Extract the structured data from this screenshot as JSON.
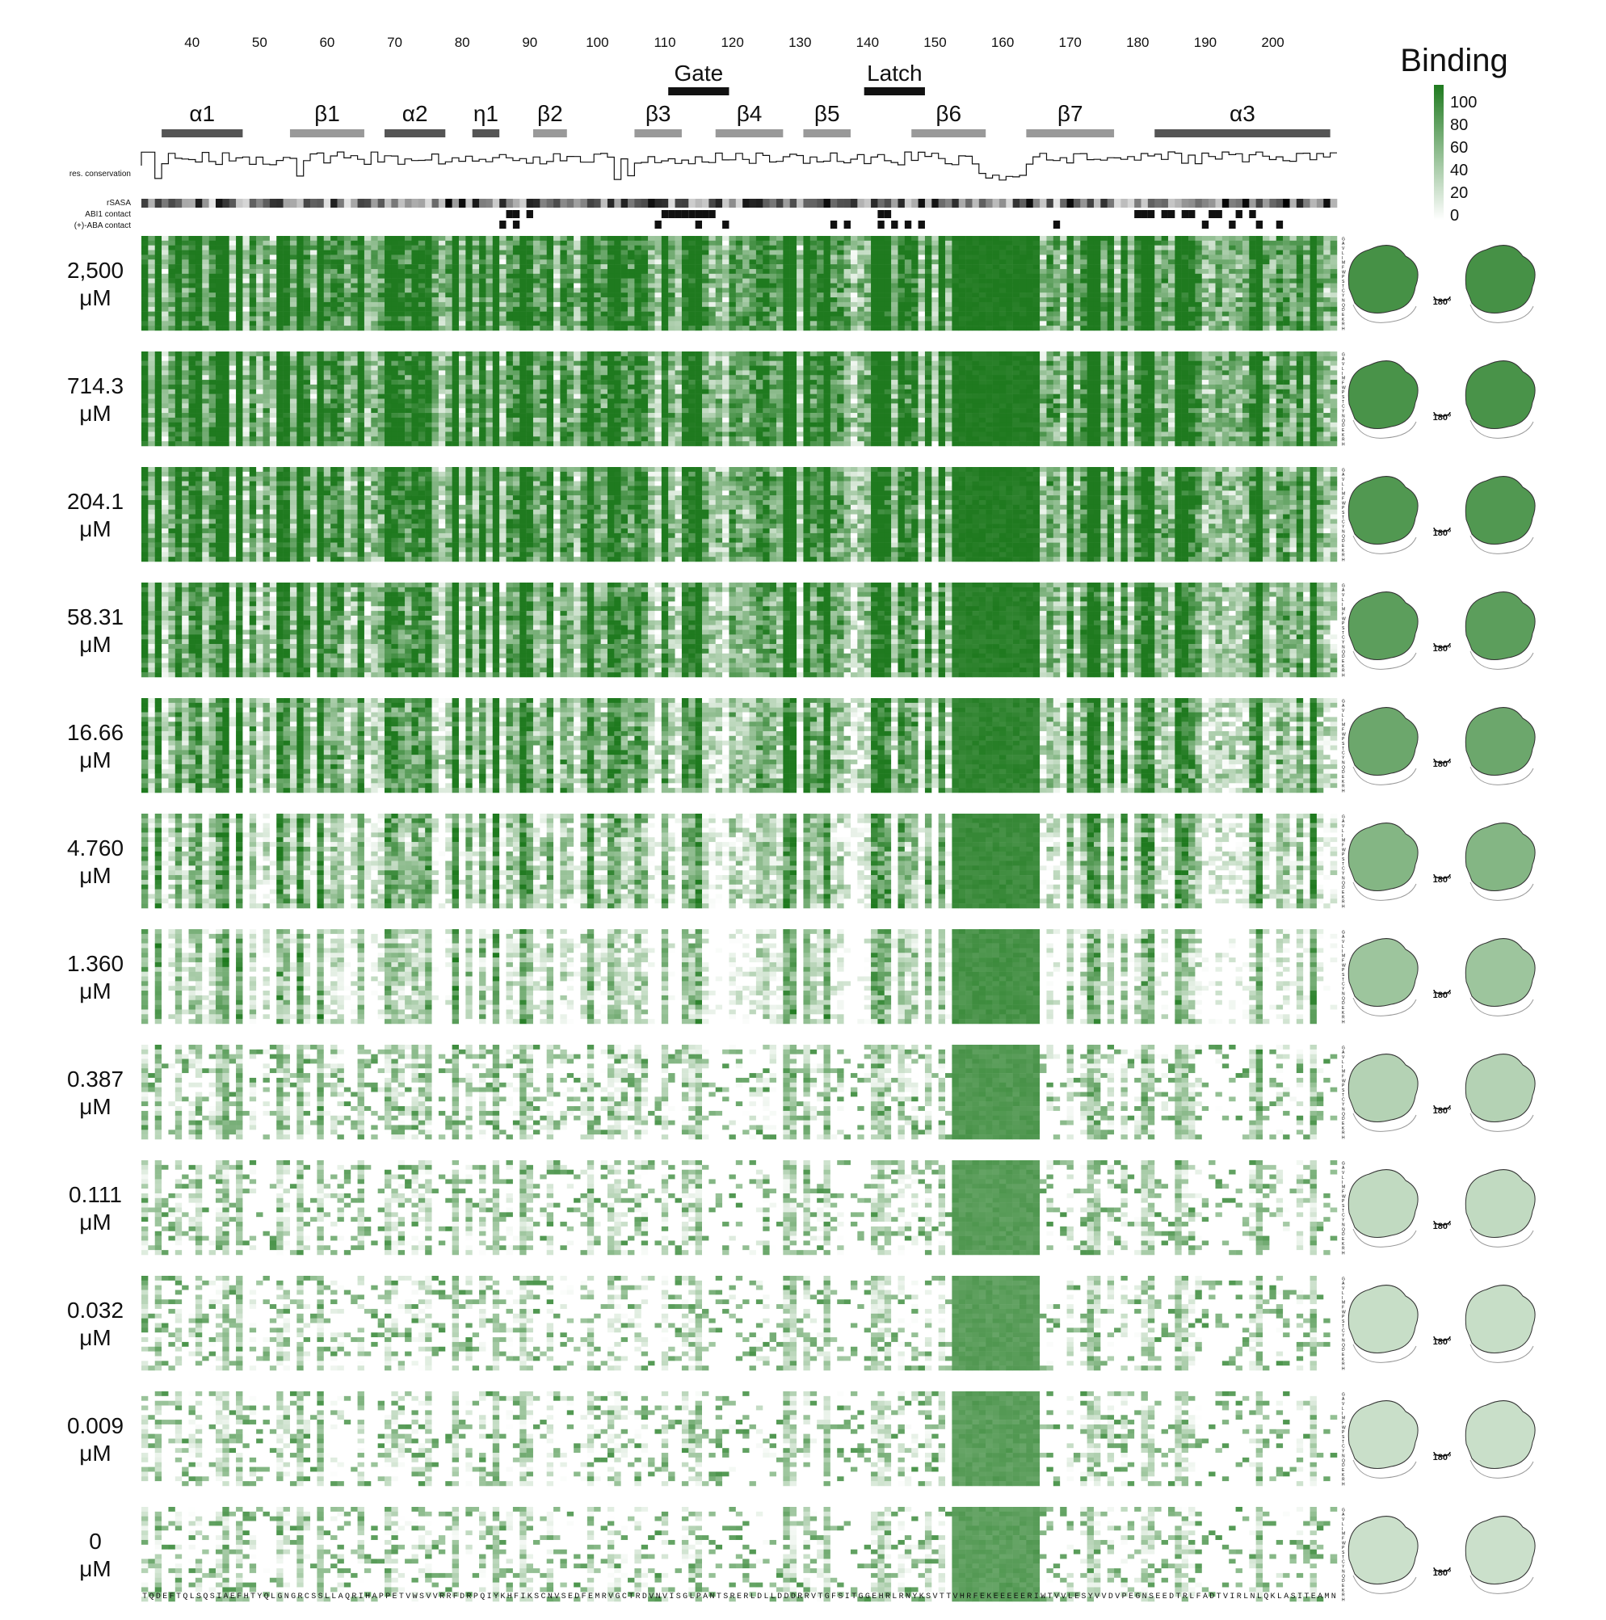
{
  "figure": {
    "legend_title": "Binding",
    "legend_ticks": [
      "100",
      "80",
      "60",
      "40",
      "20",
      "0"
    ],
    "track_labels": [
      "res. conservation",
      "rSASA",
      "ABI1 contact",
      "(+)-ABA contact"
    ],
    "rotation_label": "180°",
    "colors": {
      "high": "#1f7a1f",
      "low": "#ffffff",
      "track_dark": "#111111"
    }
  },
  "chart_data": {
    "type": "heatmap",
    "title": "",
    "colorbar_label": "Binding",
    "colorbar_range": [
      0,
      100
    ],
    "residue_range": [
      33,
      209
    ],
    "residue_ticks": [
      40,
      50,
      60,
      70,
      80,
      90,
      100,
      110,
      120,
      130,
      140,
      150,
      160,
      170,
      180,
      190,
      200
    ],
    "sequence": "TQDEFTQLSQSIAEFHTYQLGNGRCSSLLAQRIHAPPETVWSVVRRFDRPQIYKHFIKSCNVSEDFEMRVGCTRDVNVISGLPANTSRERLDLLDDDRRVTGFSITGGEHRLRNYKSVTTVHRFEKEEEEERIWTVVLESYVVDVPEGNSEEDTRLFADTVIRLNLQKLASITEAMN",
    "secondary_structure": [
      {
        "label": "α1",
        "start": 36,
        "end": 47
      },
      {
        "label": "β1",
        "start": 55,
        "end": 65
      },
      {
        "label": "α2",
        "start": 69,
        "end": 77
      },
      {
        "label": "η1",
        "start": 82,
        "end": 85
      },
      {
        "label": "β2",
        "start": 91,
        "end": 95
      },
      {
        "label": "β3",
        "start": 106,
        "end": 112
      },
      {
        "label": "β4",
        "start": 118,
        "end": 127
      },
      {
        "label": "β5",
        "start": 131,
        "end": 137
      },
      {
        "label": "β6",
        "start": 147,
        "end": 157
      },
      {
        "label": "β7",
        "start": 164,
        "end": 176
      },
      {
        "label": "α3",
        "start": 183,
        "end": 208
      }
    ],
    "regions": [
      {
        "label": "Gate",
        "start": 111,
        "end": 119
      },
      {
        "label": "Latch",
        "start": 140,
        "end": 148
      }
    ],
    "concentrations": [
      "2,500 μM",
      "714.3 μM",
      "204.1 μM",
      "58.31 μM",
      "16.66 μM",
      "4.760 μM",
      "1.360 μM",
      "0.387 μM",
      "0.111 μM",
      "0.032 μM",
      "0.009 μM",
      "0 μM"
    ],
    "abi1_contact_residues": [
      87,
      88,
      90,
      110,
      111,
      112,
      113,
      114,
      115,
      116,
      117,
      142,
      143,
      180,
      181,
      182,
      184,
      185,
      187,
      188,
      191,
      192,
      195,
      197
    ],
    "aba_contact_residues": [
      86,
      88,
      109,
      115,
      119,
      135,
      137,
      142,
      144,
      146,
      148,
      168,
      190,
      194,
      198,
      201
    ],
    "mean_binding_per_concentration": [
      88,
      86,
      82,
      76,
      68,
      55,
      42,
      30,
      23,
      20,
      19,
      18
    ],
    "mutant_amino_acids": [
      "G",
      "A",
      "V",
      "L",
      "I",
      "M",
      "F",
      "W",
      "P",
      "S",
      "T",
      "C",
      "Y",
      "N",
      "Q",
      "D",
      "E",
      "K",
      "R",
      "H"
    ]
  }
}
